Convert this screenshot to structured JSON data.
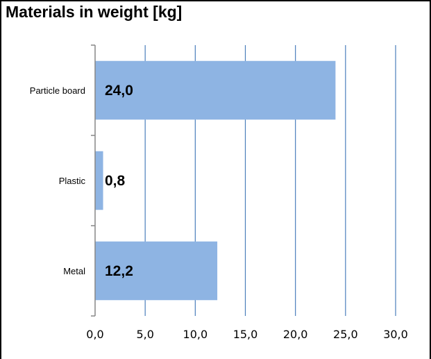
{
  "chart_data": {
    "type": "bar",
    "orientation": "horizontal",
    "title": "Materials in weight [kg]",
    "xlabel": "",
    "ylabel": "",
    "categories": [
      "Particle board",
      "Plastic",
      "Metal"
    ],
    "values": [
      24.0,
      0.8,
      12.2
    ],
    "data_labels": [
      "24,0",
      "0,8",
      "12,2"
    ],
    "xlim": [
      0,
      30
    ],
    "xticks": [
      0,
      5,
      10,
      15,
      20,
      25,
      30
    ],
    "xtick_labels": [
      "0,0",
      "5,0",
      "10,0",
      "15,0",
      "20,0",
      "25,0",
      "30,0"
    ],
    "grid": "vertical",
    "legend": "none",
    "colors": {
      "bar": "#8eb4e3",
      "gridline": "#4a7ebb",
      "axis": "#868686",
      "text": "#000000"
    }
  }
}
